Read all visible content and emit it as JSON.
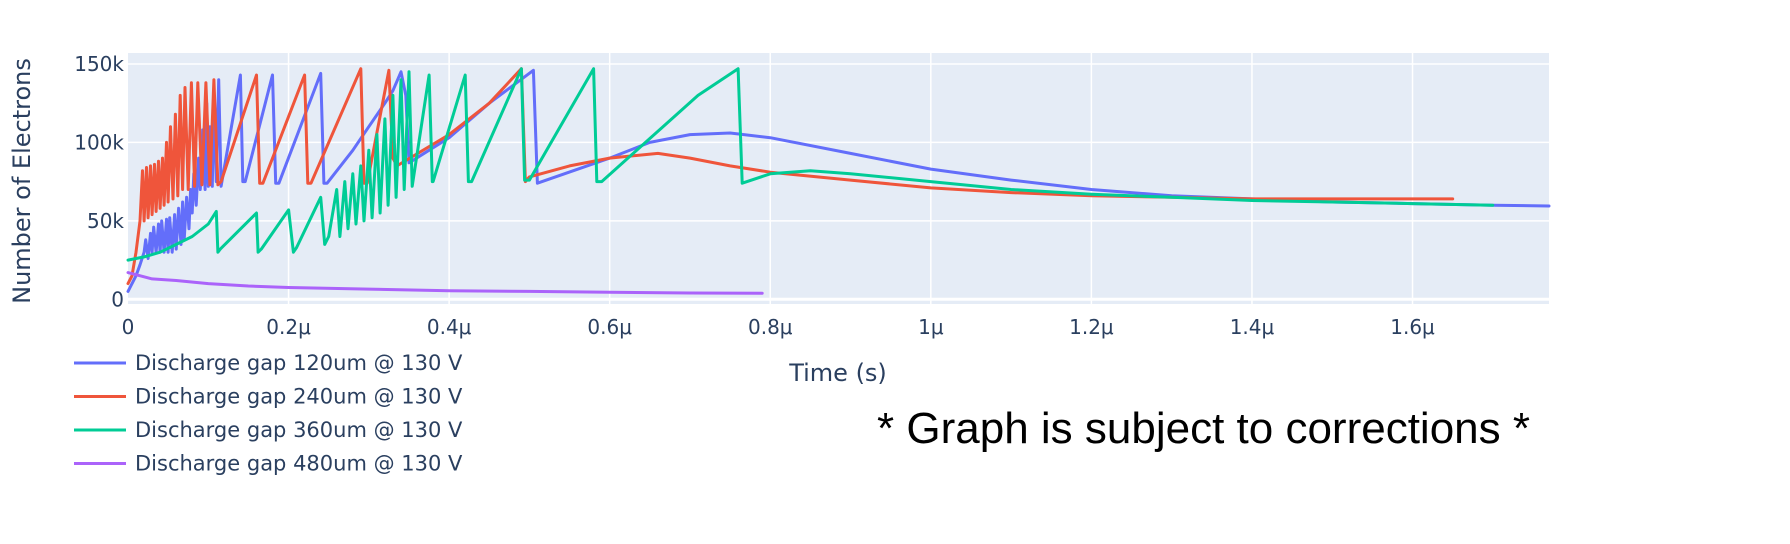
{
  "chart_data": {
    "type": "line",
    "title": "",
    "xlabel": "Time (s)",
    "ylabel": "Number of Electrons",
    "xlim": [
      0,
      1.77e-06
    ],
    "ylim": [
      -3000,
      157000
    ],
    "x_ticks": [
      {
        "value": 0,
        "label": "0"
      },
      {
        "value": 2e-07,
        "label": "0.2μ"
      },
      {
        "value": 4e-07,
        "label": "0.4μ"
      },
      {
        "value": 6e-07,
        "label": "0.6μ"
      },
      {
        "value": 8e-07,
        "label": "0.8μ"
      },
      {
        "value": 1e-06,
        "label": "1μ"
      },
      {
        "value": 1.2e-06,
        "label": "1.2μ"
      },
      {
        "value": 1.4e-06,
        "label": "1.4μ"
      },
      {
        "value": 1.6e-06,
        "label": "1.6μ"
      }
    ],
    "y_ticks": [
      {
        "value": 0,
        "label": "0"
      },
      {
        "value": 50000,
        "label": "50k"
      },
      {
        "value": 100000,
        "label": "100k"
      },
      {
        "value": 150000,
        "label": "150k"
      }
    ],
    "grid": true,
    "legend_position": "bottom-left",
    "annotation": "* Graph is subject to corrections *",
    "series": [
      {
        "name": "Discharge gap 120um @ 130 V",
        "color": "#636efa",
        "x": [
          0,
          1e-08,
          1.5e-08,
          2e-08,
          2.2e-08,
          2.5e-08,
          2.8e-08,
          3e-08,
          3.2e-08,
          3.5e-08,
          3.8e-08,
          4e-08,
          4.2e-08,
          4.5e-08,
          4.8e-08,
          5e-08,
          5.2e-08,
          5.5e-08,
          5.8e-08,
          6e-08,
          6.3e-08,
          6.6e-08,
          6.8e-08,
          7e-08,
          7.3e-08,
          7.6e-08,
          7.8e-08,
          8e-08,
          8.2e-08,
          8.5e-08,
          8.8e-08,
          9e-08,
          9.3e-08,
          9.6e-08,
          9.8e-08,
          1e-07,
          1.02e-07,
          1.05e-07,
          1.07e-07,
          1.1e-07,
          1.13e-07,
          1.16e-07,
          1.4e-07,
          1.43e-07,
          1.46e-07,
          1.8e-07,
          1.84e-07,
          1.88e-07,
          2.4e-07,
          2.44e-07,
          2.48e-07,
          2.8e-07,
          3e-07,
          3.2e-07,
          3.3e-07,
          3.4e-07,
          3.46e-07,
          3.5e-07,
          4e-07,
          4.5e-07,
          5.05e-07,
          5.1e-07,
          6e-07,
          6.5e-07,
          7e-07,
          7.5e-07,
          8e-07,
          9e-07,
          1e-06,
          1.1e-06,
          1.2e-06,
          1.3e-06,
          1.4e-06,
          1.5e-06,
          1.6e-06,
          1.7e-06,
          1.77e-06
        ],
        "y": [
          5000,
          15000,
          22000,
          30000,
          38000,
          26000,
          42000,
          30000,
          46000,
          30000,
          48000,
          30000,
          50000,
          30000,
          51000,
          30000,
          52000,
          30000,
          54000,
          32000,
          58000,
          35000,
          62000,
          38000,
          65000,
          45000,
          70000,
          55000,
          80000,
          60000,
          90000,
          70000,
          108000,
          70000,
          125000,
          72000,
          110000,
          72000,
          130000,
          75000,
          140000,
          72000,
          143000,
          75000,
          75000,
          143000,
          74000,
          74000,
          144000,
          74000,
          74000,
          95000,
          110000,
          125000,
          133000,
          145000,
          130000,
          87000,
          103000,
          125000,
          146000,
          74000,
          90000,
          100000,
          105000,
          106000,
          103000,
          93000,
          83000,
          76000,
          70000,
          66000,
          64000,
          62000,
          61000,
          60000,
          59500
        ]
      },
      {
        "name": "Discharge gap 240um @ 130 V",
        "color": "#ef553b",
        "x": [
          0,
          5e-09,
          1e-08,
          1.5e-08,
          1.8e-08,
          2e-08,
          2.3e-08,
          2.5e-08,
          2.8e-08,
          3e-08,
          3.3e-08,
          3.5e-08,
          3.8e-08,
          4e-08,
          4.3e-08,
          4.5e-08,
          4.8e-08,
          5e-08,
          5.3e-08,
          5.6e-08,
          5.9e-08,
          6.2e-08,
          6.5e-08,
          6.8e-08,
          7.1e-08,
          7.5e-08,
          7.9e-08,
          8.3e-08,
          8.7e-08,
          9.2e-08,
          9.7e-08,
          1.02e-07,
          1.07e-07,
          1.12e-07,
          1.16e-07,
          1.6e-07,
          1.64e-07,
          1.68e-07,
          2.2e-07,
          2.24e-07,
          2.28e-07,
          2.9e-07,
          2.94e-07,
          2.98e-07,
          3.25e-07,
          3.3e-07,
          3.35e-07,
          4e-07,
          4.5e-07,
          4.9e-07,
          4.95e-07,
          5e-07,
          5.5e-07,
          6e-07,
          6.6e-07,
          7e-07,
          7.5e-07,
          8e-07,
          9e-07,
          1e-06,
          1.1e-06,
          1.2e-06,
          1.3e-06,
          1.4e-06,
          1.5e-06,
          1.6e-06,
          1.65e-06
        ],
        "y": [
          10000,
          15000,
          30000,
          50000,
          82000,
          50000,
          84000,
          52000,
          85000,
          54000,
          86000,
          56000,
          88000,
          58000,
          90000,
          60000,
          100000,
          62000,
          110000,
          64000,
          118000,
          66000,
          130000,
          70000,
          135000,
          70000,
          138000,
          72000,
          138000,
          73000,
          138000,
          73000,
          140000,
          73000,
          75000,
          143000,
          74000,
          74000,
          143000,
          74000,
          74000,
          147000,
          74000,
          74000,
          146000,
          90000,
          85000,
          105000,
          125000,
          147000,
          75000,
          78000,
          85000,
          90000,
          93000,
          90000,
          85000,
          81000,
          76000,
          71000,
          68000,
          66000,
          65000,
          64000,
          64000,
          64000,
          64000
        ]
      },
      {
        "name": "Discharge gap 360um @ 130 V",
        "color": "#00cc96",
        "x": [
          0,
          2e-08,
          4e-08,
          6e-08,
          8e-08,
          1e-07,
          1.1e-07,
          1.12e-07,
          1.15e-07,
          1.6e-07,
          1.62e-07,
          1.66e-07,
          2e-07,
          2.06e-07,
          2.1e-07,
          2.4e-07,
          2.45e-07,
          2.5e-07,
          2.6e-07,
          2.64e-07,
          2.7e-07,
          2.74e-07,
          2.8e-07,
          2.84e-07,
          2.9e-07,
          2.94e-07,
          3e-07,
          3.04e-07,
          3.1e-07,
          3.14e-07,
          3.2e-07,
          3.24e-07,
          3.3e-07,
          3.34e-07,
          3.4e-07,
          3.44e-07,
          3.5e-07,
          3.54e-07,
          3.75e-07,
          3.79e-07,
          3.8e-07,
          4.2e-07,
          4.24e-07,
          4.28e-07,
          4.9e-07,
          4.94e-07,
          5e-07,
          5.8e-07,
          5.84e-07,
          5.9e-07,
          7.1e-07,
          7.6e-07,
          7.65e-07,
          8e-07,
          8.5e-07,
          9e-07,
          1e-06,
          1.1e-06,
          1.2e-06,
          1.3e-06,
          1.4e-06,
          1.5e-06,
          1.6e-06,
          1.7e-06
        ],
        "y": [
          25000,
          27000,
          30000,
          35000,
          40000,
          48000,
          56000,
          30000,
          32000,
          55000,
          30000,
          32000,
          57000,
          30000,
          33000,
          65000,
          35000,
          40000,
          70000,
          40000,
          75000,
          45000,
          80000,
          48000,
          85000,
          50000,
          95000,
          52000,
          105000,
          55000,
          115000,
          60000,
          130000,
          65000,
          140000,
          70000,
          145000,
          72000,
          143000,
          75000,
          75000,
          143000,
          75000,
          75000,
          147000,
          76000,
          76000,
          147000,
          75000,
          75000,
          130000,
          147000,
          74000,
          80000,
          82000,
          80000,
          75000,
          70000,
          67000,
          65000,
          63000,
          62000,
          61000,
          60000
        ]
      },
      {
        "name": "Discharge gap 480um @ 130 V",
        "color": "#ab63fa",
        "x": [
          0,
          3e-08,
          6e-08,
          1e-07,
          1.5e-07,
          2e-07,
          3e-07,
          4e-07,
          5e-07,
          6e-07,
          7e-07,
          7.9e-07
        ],
        "y": [
          17000,
          13000,
          12000,
          10000,
          8500,
          7500,
          6500,
          5500,
          5000,
          4500,
          4000,
          3800
        ]
      }
    ]
  }
}
